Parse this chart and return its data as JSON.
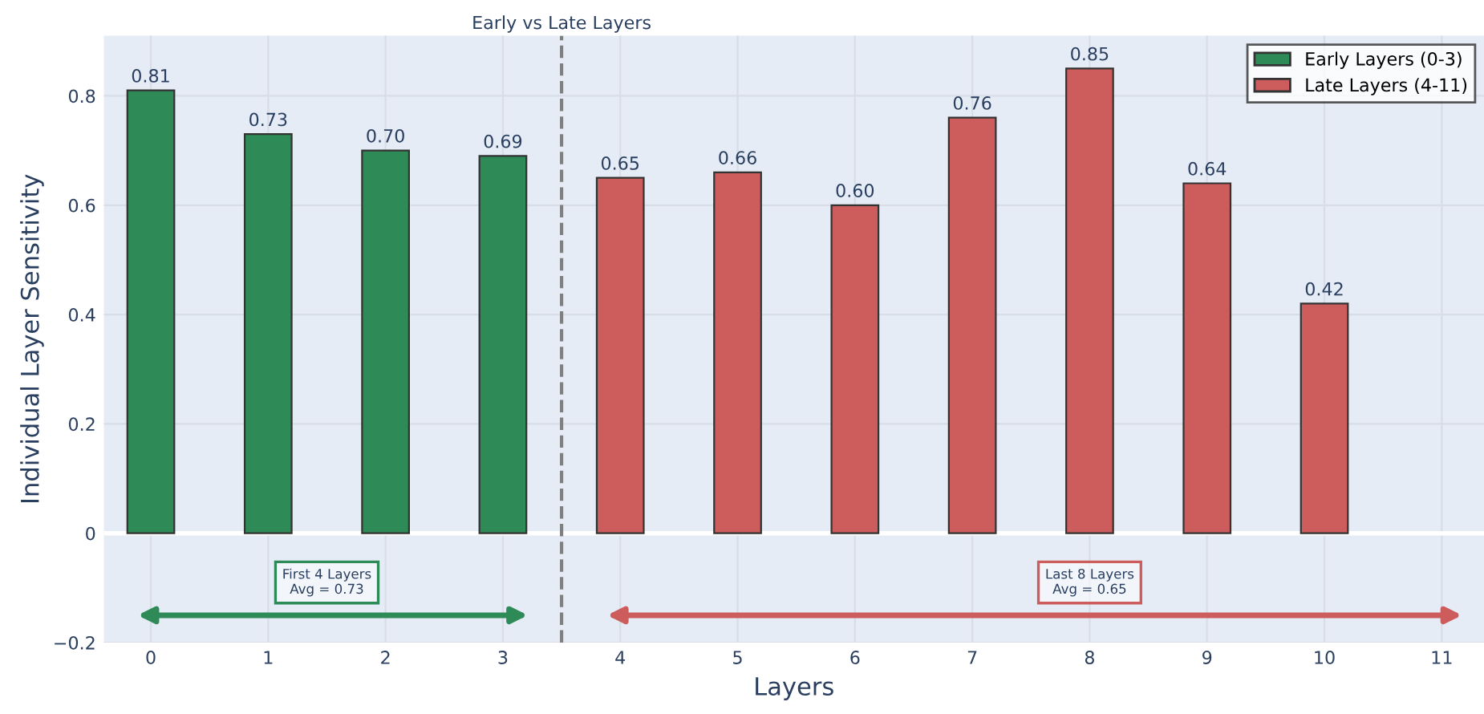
{
  "chart_data": {
    "type": "bar",
    "xlabel": "Layers",
    "ylabel": "Individual Layer Sensitivity",
    "xlim": [
      -0.4,
      11.36
    ],
    "ylim": [
      -0.2,
      0.91
    ],
    "xticks": [
      0,
      1,
      2,
      3,
      4,
      5,
      6,
      7,
      8,
      9,
      10,
      11
    ],
    "yticks": [
      {
        "value": -0.2,
        "label": "−0.2"
      },
      0,
      0.2,
      0.4,
      0.6,
      0.8
    ],
    "series": [
      {
        "name": "Early Layers (0-3)",
        "color": "#2e8b57",
        "x": [
          0,
          1,
          2,
          3
        ],
        "values": [
          0.81,
          0.73,
          0.7,
          0.69
        ],
        "value_labels": [
          "0.81",
          "0.73",
          "0.70",
          "0.69"
        ]
      },
      {
        "name": "Late Layers (4-11)",
        "color": "#cd5c5c",
        "x": [
          4,
          5,
          6,
          7,
          8,
          9,
          10
        ],
        "values": [
          0.65,
          0.66,
          0.6,
          0.76,
          0.85,
          0.64,
          0.42
        ],
        "value_labels": [
          "0.65",
          "0.66",
          "0.60",
          "0.76",
          "0.85",
          "0.64",
          "0.42"
        ]
      }
    ],
    "ref_lines": [
      {
        "axis": "x",
        "value": 3.5,
        "label": "Early vs Late Layers",
        "color": "#808080",
        "line_style": "dashed"
      }
    ],
    "annotations": [
      "First 4 Layers\nAvg = 0.73",
      "Last 8 Layers\nAvg = 0.65"
    ],
    "grid": true,
    "legend": "top right"
  }
}
